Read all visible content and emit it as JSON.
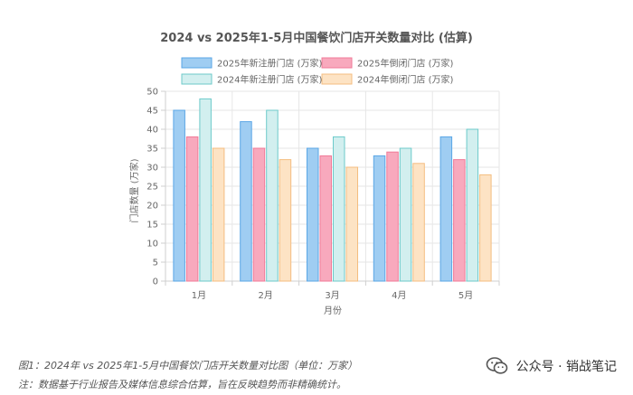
{
  "chart_data": {
    "type": "bar",
    "title": "2024 vs 2025年1-5月中国餐饮门店开关数量对比 (估算)",
    "xlabel": "月份",
    "ylabel": "门店数量 (万家)",
    "categories": [
      "1月",
      "2月",
      "3月",
      "4月",
      "5月"
    ],
    "ylim": [
      0,
      50
    ],
    "yticks": [
      0,
      5,
      10,
      15,
      20,
      25,
      30,
      35,
      40,
      45,
      50
    ],
    "grid": true,
    "legend_position": "top-center",
    "series": [
      {
        "name": "2025年新注册门店 (万家)",
        "values": [
          45,
          42,
          35,
          33,
          38
        ],
        "fill": "#9fcdf2",
        "stroke": "#5aa6e6"
      },
      {
        "name": "2025年倒闭门店 (万家)",
        "values": [
          38,
          35,
          33,
          34,
          32
        ],
        "fill": "#f8a9bd",
        "stroke": "#f07a98"
      },
      {
        "name": "2024年新注册门店 (万家)",
        "values": [
          48,
          45,
          38,
          35,
          40
        ],
        "fill": "#d2efef",
        "stroke": "#6ccaca"
      },
      {
        "name": "2024年倒闭门店 (万家)",
        "values": [
          35,
          32,
          30,
          31,
          28
        ],
        "fill": "#fde3c4",
        "stroke": "#f4bd80"
      }
    ]
  },
  "caption": {
    "line1": "图1：2024年 vs 2025年1-5月中国餐饮门店开关数量对比图（单位：万家）",
    "line2": "注：数据基于行业报告及媒体信息综合估算，旨在反映趋势而非精确统计。"
  },
  "watermark": {
    "text": "公众号 · 销战笔记",
    "icon": "wechat-icon"
  }
}
